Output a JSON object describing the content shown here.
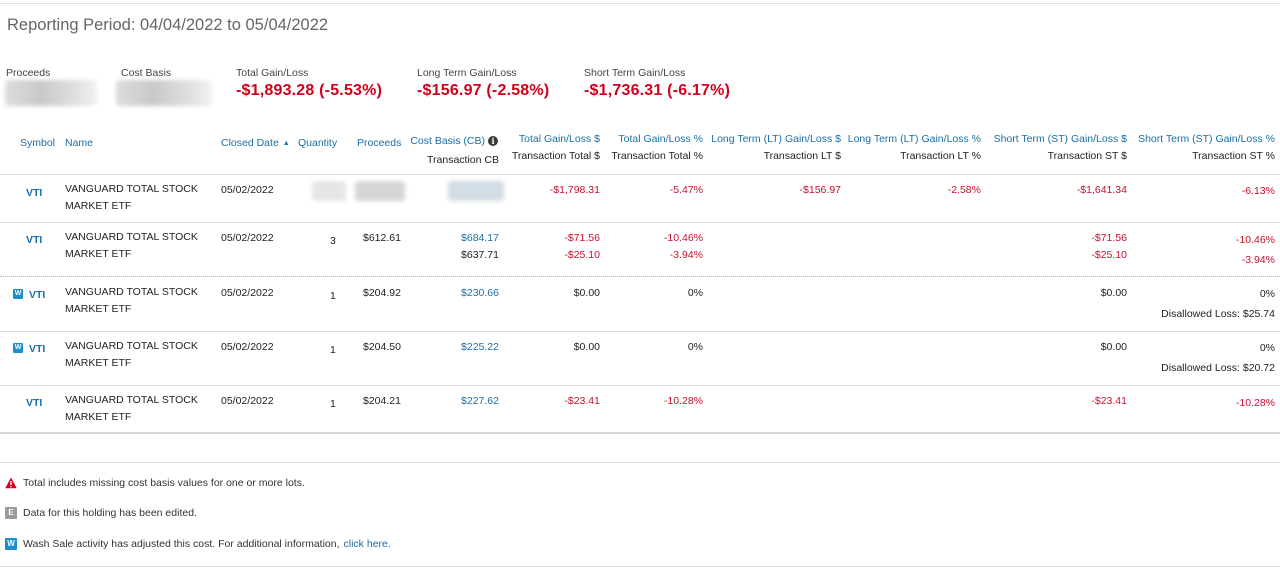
{
  "header": {
    "reporting_period": "Reporting Period: 04/04/2022 to 05/04/2022"
  },
  "summary": {
    "proceeds_label": "Proceeds",
    "cost_basis_label": "Cost Basis",
    "total_label": "Total Gain/Loss",
    "total_value": "-$1,893.28 (-5.53%)",
    "lt_label": "Long Term Gain/Loss",
    "lt_value": "-$156.97 (-2.58%)",
    "st_label": "Short Term Gain/Loss",
    "st_value": "-$1,736.31 (-6.17%)"
  },
  "columns": {
    "symbol": "Symbol",
    "name": "Name",
    "closed_date": "Closed Date",
    "quantity": "Quantity",
    "proceeds": "Proceeds",
    "cost_basis": "Cost Basis (CB)",
    "cost_basis_sub": "Transaction CB",
    "total_gl": "Total Gain/Loss $",
    "total_gl_sub": "Transaction Total $",
    "total_gl_pct": "Total Gain/Loss %",
    "total_gl_pct_sub": "Transaction Total %",
    "lt_gl": "Long Term (LT) Gain/Loss $",
    "lt_gl_sub": "Transaction LT $",
    "lt_gl_pct": "Long Term (LT) Gain/Loss %",
    "lt_gl_pct_sub": "Transaction LT %",
    "st_gl": "Short Term (ST) Gain/Loss $",
    "st_gl_sub": "Transaction ST $",
    "st_gl_pct": "Short Term (ST) Gain/Loss %",
    "st_gl_pct_sub": "Transaction ST %"
  },
  "rows": [
    {
      "symbol": "VTI",
      "name_line1": "VANGUARD TOTAL STOCK",
      "name_line2": "MARKET ETF",
      "closed_date": "05/02/2022",
      "total_gl": "-$1,798.31",
      "total_gl_pct": "-5.47%",
      "lt_gl": "-$156.97",
      "lt_gl_pct": "-2.58%",
      "st_gl": "-$1,641.34",
      "st_gl_pct": "-6.13%"
    },
    {
      "symbol": "VTI",
      "name_line1": "VANGUARD TOTAL STOCK",
      "name_line2": "MARKET ETF",
      "closed_date": "05/02/2022",
      "quantity": "3",
      "proceeds": "$612.61",
      "cost_basis": "$684.17",
      "transaction_cb": "$637.71",
      "total_gl": "-$71.56",
      "transaction_total": "-$25.10",
      "total_gl_pct": "-10.46%",
      "transaction_total_pct": "-3.94%",
      "st_gl": "-$71.56",
      "transaction_st": "-$25.10",
      "st_gl_pct": "-10.46%",
      "transaction_st_pct": "-3.94%"
    },
    {
      "badge": "W",
      "symbol": "VTI",
      "name_line1": "VANGUARD TOTAL STOCK",
      "name_line2": "MARKET ETF",
      "closed_date": "05/02/2022",
      "quantity": "1",
      "proceeds": "$204.92",
      "cost_basis": "$230.66",
      "total_gl": "$0.00",
      "total_gl_pct": "0%",
      "st_gl": "$0.00",
      "st_gl_pct": "0%",
      "disallowed": "Disallowed Loss: $25.74"
    },
    {
      "badge": "W",
      "symbol": "VTI",
      "name_line1": "VANGUARD TOTAL STOCK",
      "name_line2": "MARKET ETF",
      "closed_date": "05/02/2022",
      "quantity": "1",
      "proceeds": "$204.50",
      "cost_basis": "$225.22",
      "total_gl": "$0.00",
      "total_gl_pct": "0%",
      "st_gl": "$0.00",
      "st_gl_pct": "0%",
      "disallowed": "Disallowed Loss: $20.72"
    },
    {
      "symbol": "VTI",
      "name_line1": "VANGUARD TOTAL STOCK",
      "name_line2": "MARKET ETF",
      "closed_date": "05/02/2022",
      "quantity": "1",
      "proceeds": "$204.21",
      "cost_basis": "$227.62",
      "total_gl": "-$23.41",
      "total_gl_pct": "-10.28%",
      "st_gl": "-$23.41",
      "st_gl_pct": "-10.28%"
    }
  ],
  "legend": {
    "missing_cb": "Total includes missing cost basis values for one or more lots.",
    "edited": "Data for this holding has been edited.",
    "edited_badge": "E",
    "wash_sale": "Wash Sale activity has adjusted this cost. For additional information,",
    "wash_badge": "W",
    "click_here": "click here."
  },
  "colors": {
    "negative": "#c8102e",
    "link": "#1a6fa8",
    "wash_badge": "#1a8fd0"
  }
}
